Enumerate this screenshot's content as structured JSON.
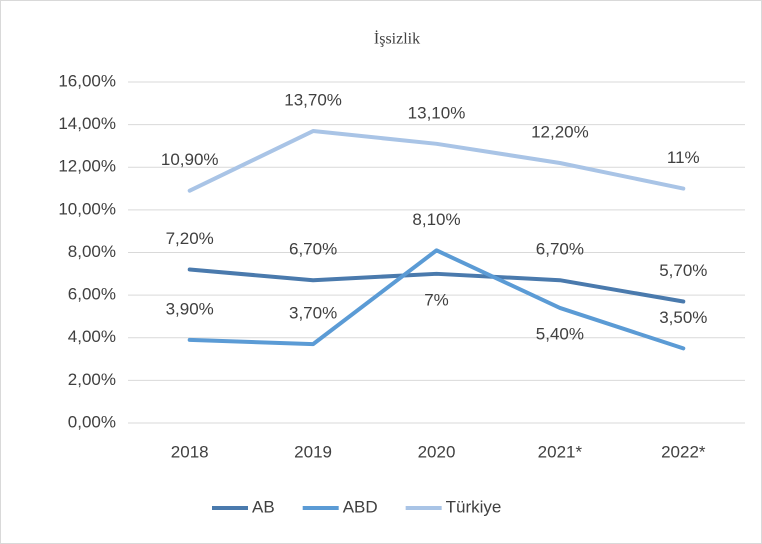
{
  "chart_data": {
    "type": "line",
    "title": "İşsizlik",
    "categories": [
      "2018",
      "2019",
      "2020",
      "2021*",
      "2022*"
    ],
    "series": [
      {
        "name": "AB",
        "color": "#4a7aad",
        "values": [
          7.2,
          6.7,
          7.0,
          6.7,
          5.7
        ],
        "value_labels": [
          "7,20%",
          "6,70%",
          "7%",
          "6,70%",
          "5,70%"
        ]
      },
      {
        "name": "ABD",
        "color": "#5b9bd5",
        "values": [
          3.9,
          3.7,
          8.1,
          5.4,
          3.5
        ],
        "value_labels": [
          "3,90%",
          "3,70%",
          "8,10%",
          "5,40%",
          "3,50%"
        ]
      },
      {
        "name": "Türkiye",
        "color": "#a9c4e6",
        "values": [
          10.9,
          13.7,
          13.1,
          12.2,
          11
        ],
        "value_labels": [
          "10,90%",
          "13,70%",
          "13,10%",
          "12,20%",
          "11%"
        ]
      }
    ],
    "ylim": [
      0,
      16
    ],
    "yticks": [
      {
        "value": 0,
        "label": "0,00%"
      },
      {
        "value": 2,
        "label": "2,00%"
      },
      {
        "value": 4,
        "label": "4,00%"
      },
      {
        "value": 6,
        "label": "6,00%"
      },
      {
        "value": 8,
        "label": "8,00%"
      },
      {
        "value": 10,
        "label": "10,00%"
      },
      {
        "value": 12,
        "label": "12,00%"
      },
      {
        "value": 14,
        "label": "14,00%"
      },
      {
        "value": 16,
        "label": "16,00%"
      }
    ],
    "grid": true,
    "legend": "bottom"
  }
}
